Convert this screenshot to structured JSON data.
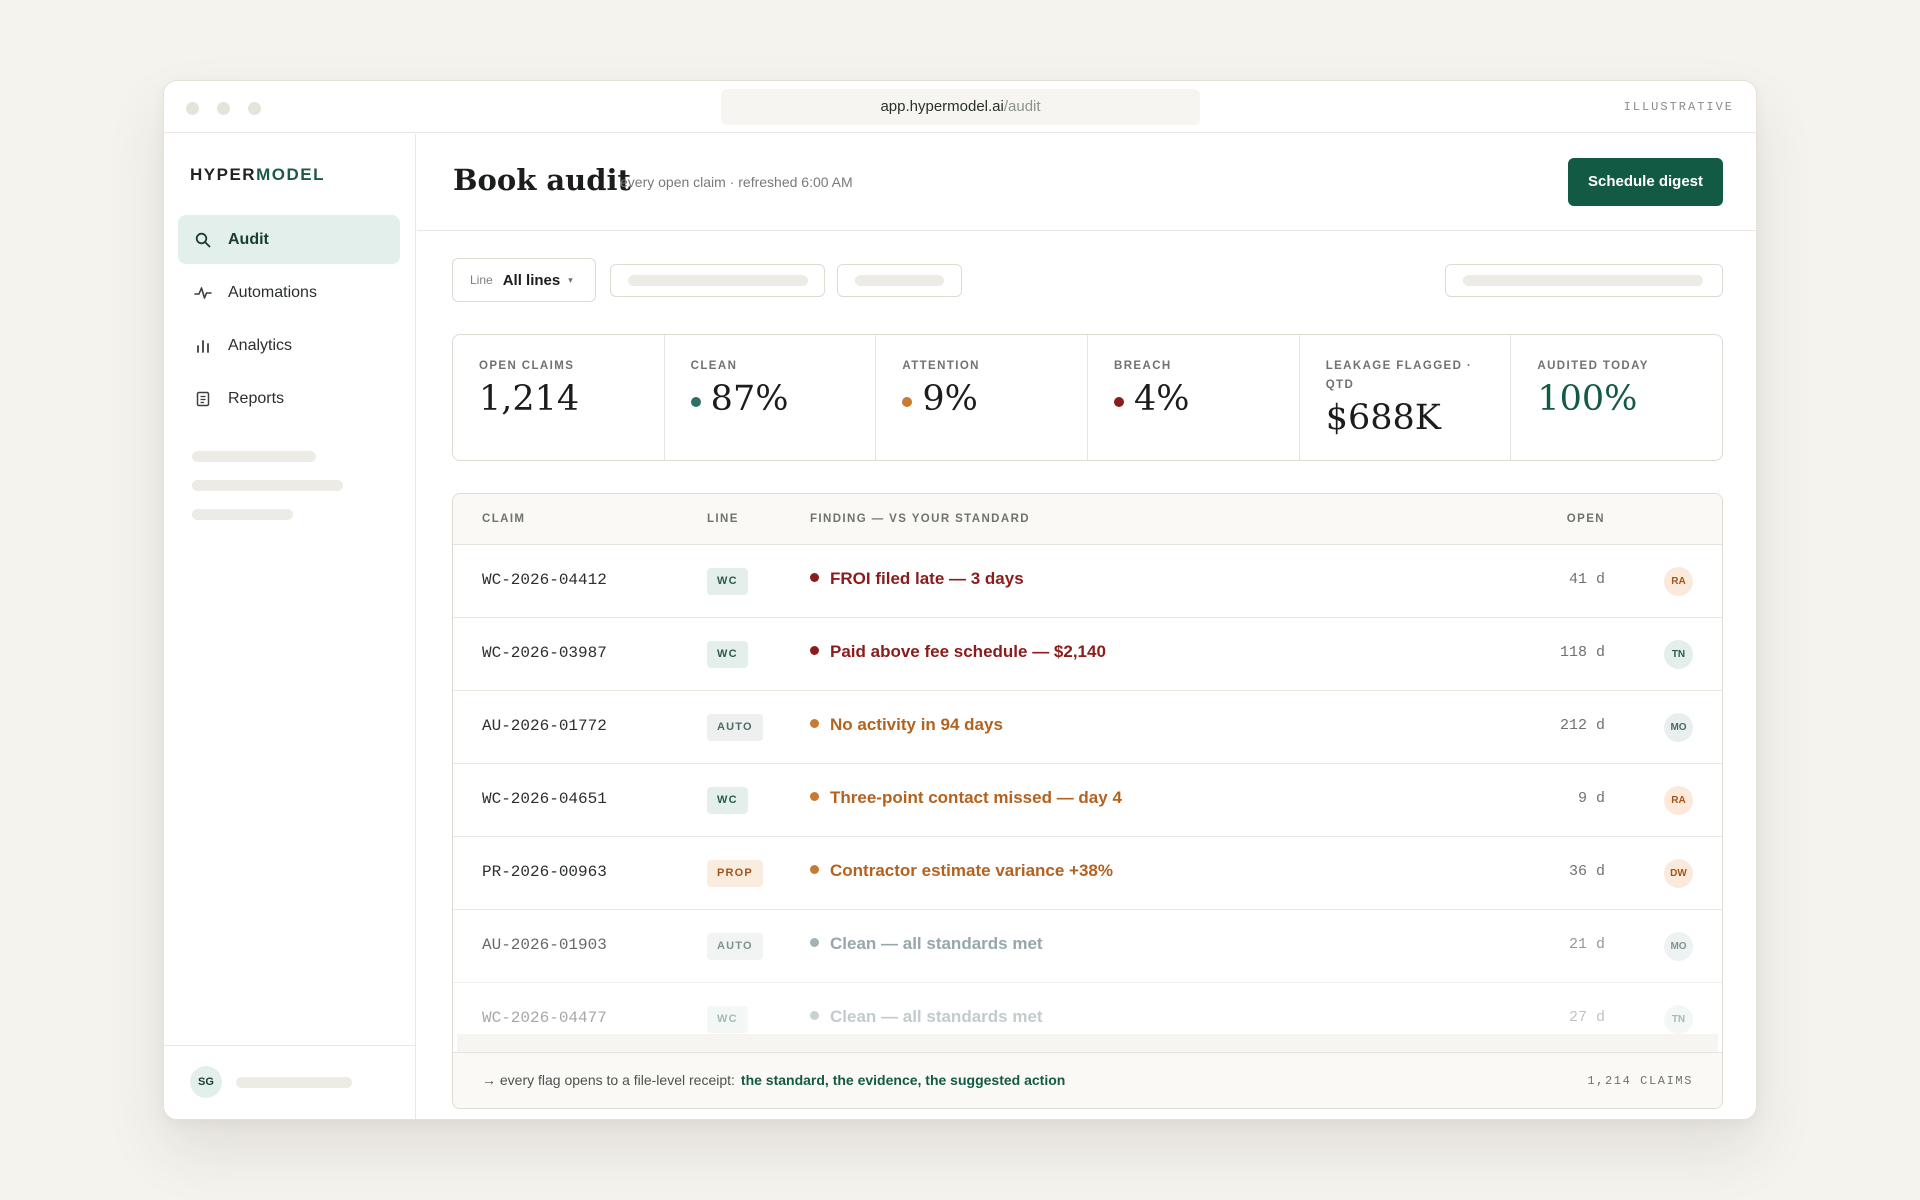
{
  "browser": {
    "url_host": "app.hypermodel.ai",
    "url_path": "/audit",
    "badge": "ILLUSTRATIVE"
  },
  "sidebar": {
    "logo_part1": "HYPER",
    "logo_part2": "MODEL",
    "items": [
      {
        "label": "Audit",
        "icon": "search-icon",
        "active": true
      },
      {
        "label": "Automations",
        "icon": "activity-icon",
        "active": false
      },
      {
        "label": "Analytics",
        "icon": "bar-chart-icon",
        "active": false
      },
      {
        "label": "Reports",
        "icon": "document-icon",
        "active": false
      }
    ],
    "user_initials": "SG"
  },
  "header": {
    "title": "Book audit",
    "subtitle": "every open claim · refreshed 6:00 AM",
    "cta": "Schedule digest"
  },
  "filter": {
    "label": "Line",
    "value": "All lines"
  },
  "stats": [
    {
      "label": "OPEN CLAIMS",
      "value": "1,214"
    },
    {
      "label": "CLEAN",
      "value": "87%",
      "dot_color": "#2f6f66"
    },
    {
      "label": "ATTENTION",
      "value": "9%",
      "dot_color": "#c87a2e"
    },
    {
      "label": "BREACH",
      "value": "4%",
      "dot_color": "#8a1c1c"
    },
    {
      "label": "LEAKAGE FLAGGED · QTD",
      "value": "$688K"
    },
    {
      "label": "AUDITED TODAY",
      "value": "100%",
      "accent": "#125a44"
    }
  ],
  "table": {
    "headers": {
      "claim": "CLAIM",
      "line": "LINE",
      "finding": "FINDING — VS YOUR STANDARD",
      "open": "OPEN"
    },
    "rows": [
      {
        "claim": "WC-2026-04412",
        "line": "WC",
        "finding": "FROI filed late — 3 days",
        "severity": "breach",
        "open": "41 d",
        "owner": "RA"
      },
      {
        "claim": "WC-2026-03987",
        "line": "WC",
        "finding": "Paid above fee schedule — $2,140",
        "severity": "breach",
        "open": "118 d",
        "owner": "TN"
      },
      {
        "claim": "AU-2026-01772",
        "line": "AUTO",
        "finding": "No activity in 94 days",
        "severity": "attention",
        "open": "212 d",
        "owner": "MO"
      },
      {
        "claim": "WC-2026-04651",
        "line": "WC",
        "finding": "Three-point contact missed — day 4",
        "severity": "attention",
        "open": "9 d",
        "owner": "RA"
      },
      {
        "claim": "PR-2026-00963",
        "line": "PROP",
        "finding": "Contractor estimate variance +38%",
        "severity": "attention",
        "open": "36 d",
        "owner": "DW"
      },
      {
        "claim": "AU-2026-01903",
        "line": "AUTO",
        "finding": "Clean — all standards met",
        "severity": "clean",
        "open": "21 d",
        "owner": "MO"
      },
      {
        "claim": "WC-2026-04477",
        "line": "WC",
        "finding": "Clean — all standards met",
        "severity": "clean",
        "open": "27 d",
        "owner": "TN"
      }
    ],
    "footer_prefix": "→ every flag opens to a file-level receipt:",
    "footer_strong": "the standard, the evidence, the suggested action",
    "count": "1,214 CLAIMS"
  },
  "colors": {
    "brand": "#125a44",
    "breach": "#8a1c1c",
    "attention": "#b3621f",
    "clean": "#7d969c"
  }
}
